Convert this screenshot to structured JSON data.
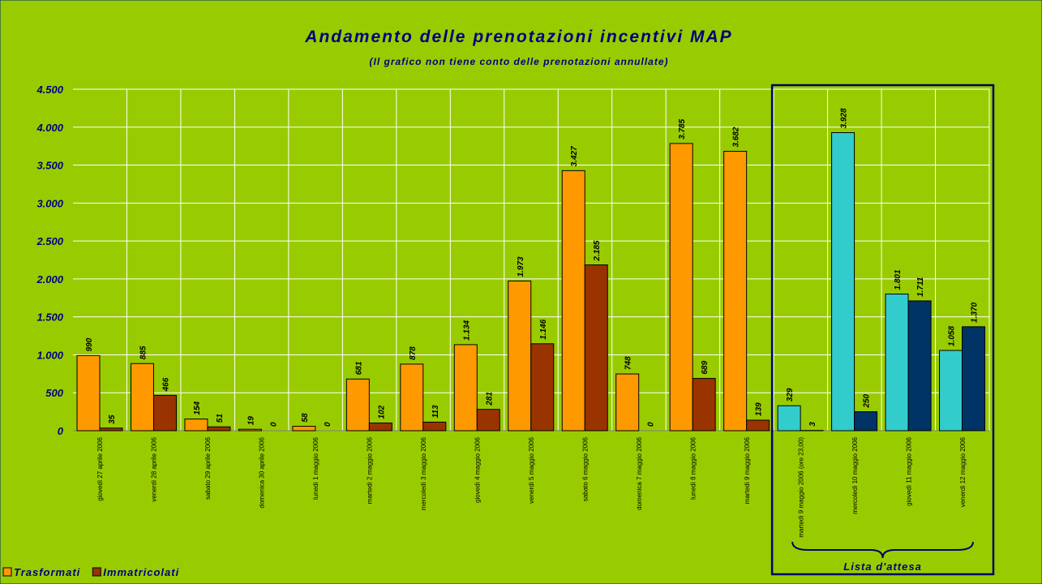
{
  "chart_data": {
    "type": "bar",
    "title": "Andamento delle prenotazioni incentivi MAP",
    "subtitle": "(Il grafico non tiene conto delle prenotazioni annullate)",
    "annotation": "Lista d'attesa",
    "categories": [
      "giovedì 27 aprile 2006",
      "venerdì 28 aprile 2006",
      "sabato 29 aprile 2006",
      "domenica 30 aprile 2006",
      "lunedì 1 maggio 2006",
      "martedì 2 maggio 2006",
      "mercoledì 3 maggio 2006",
      "giovedì 4 maggio 2006",
      "venerdì 5 maggio 2006",
      "sabato 6 maggio 2006",
      "domenica 7 maggio 2006",
      "lunedì 8 maggio 2006",
      "martedì 9 maggio 2006",
      "martedì 9 maggio 2006 (ore 23,00)",
      "mercoledì 10 maggio 2006",
      "giovedì 11 maggio 2006",
      "venerdì 12 maggio 2006"
    ],
    "series": [
      {
        "name": "Trasformati",
        "color": "#ff9900",
        "colors": [
          "#ff9900",
          "#ff9900",
          "#ff9900",
          "#ff9900",
          "#ff9900",
          "#ff9900",
          "#ff9900",
          "#ff9900",
          "#ff9900",
          "#ff9900",
          "#ff9900",
          "#ff9900",
          "#ff9900",
          "#33cccc",
          "#33cccc",
          "#33cccc",
          "#33cccc"
        ],
        "values": [
          990,
          885,
          154,
          19,
          58,
          681,
          878,
          1134,
          1973,
          3427,
          748,
          3785,
          3682,
          329,
          3928,
          1801,
          1058
        ],
        "value_labels": [
          "990",
          "885",
          "154",
          "19",
          "58",
          "681",
          "878",
          "1.134",
          "1.973",
          "3.427",
          "748",
          "3.785",
          "3.682",
          "329",
          "3.928",
          "1.801",
          "1.058"
        ]
      },
      {
        "name": "Immatricolati",
        "color": "#993300",
        "colors": [
          "#993300",
          "#993300",
          "#993300",
          "#993300",
          "#993300",
          "#993300",
          "#993300",
          "#993300",
          "#993300",
          "#993300",
          "#993300",
          "#993300",
          "#993300",
          "#003366",
          "#003366",
          "#003366",
          "#003366"
        ],
        "values": [
          35,
          466,
          51,
          0,
          0,
          102,
          113,
          281,
          1146,
          2185,
          0,
          689,
          139,
          3,
          250,
          1711,
          1370
        ],
        "value_labels": [
          "35",
          "466",
          "51",
          "0",
          "0",
          "102",
          "113",
          "281",
          "1.146",
          "2.185",
          "0",
          "689",
          "139",
          "3",
          "250",
          "1.711",
          "1.370"
        ]
      }
    ],
    "ylim": [
      0,
      4500
    ],
    "yticks": [
      0,
      500,
      {
        "value": 1000,
        "label": "1.000"
      },
      {
        "value": 1500,
        "label": "1.500"
      },
      {
        "value": 2000,
        "label": "2.000"
      },
      {
        "value": 2500,
        "label": "2.500"
      },
      {
        "value": 3000,
        "label": "3.000"
      },
      {
        "value": 3500,
        "label": "3.500"
      },
      {
        "value": 4000,
        "label": "4.000"
      },
      {
        "value": 4500,
        "label": "4.500"
      }
    ],
    "grid": true,
    "legend": "bottom-left"
  }
}
